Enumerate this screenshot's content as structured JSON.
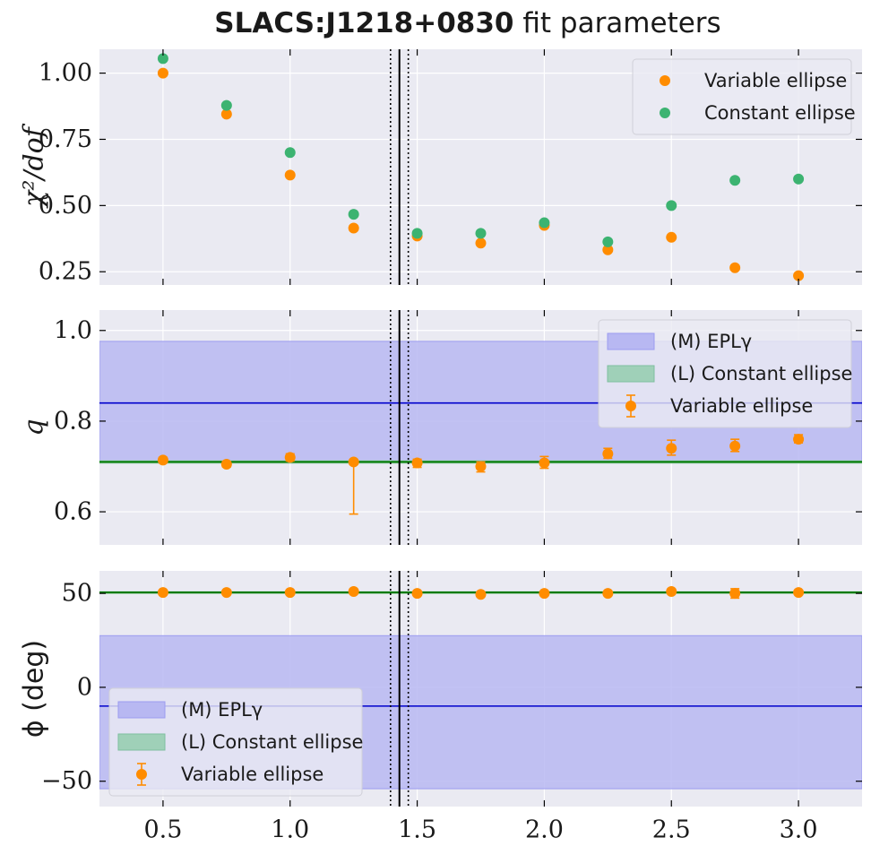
{
  "title": {
    "bold": "SLACS:J1218+0830",
    "rest": " fit parameters"
  },
  "colors": {
    "panel_bg": "#eaeaf2",
    "grid": "#ffffff",
    "variable": "#ff8c00",
    "constant": "#3cb371",
    "model_line": "#0000cc",
    "model_band": "#b8b8f2",
    "model_band_edge": "#9c9cf0",
    "light_line": "#007a00",
    "light_band": "#9fd0b8",
    "vline": "#000000"
  },
  "chart_data": [
    {
      "type": "scatter",
      "id": "chi2",
      "ylabel": "χ²/dof",
      "xlim": [
        0.25,
        3.25
      ],
      "ylim": [
        0.2,
        1.09
      ],
      "yticks": [
        0.25,
        0.5,
        0.75,
        1.0
      ],
      "ytick_labels": [
        "0.25",
        "0.50",
        "0.75",
        "1.00"
      ],
      "grid": true,
      "legend_position": "upper right",
      "x": [
        0.5,
        0.75,
        1.0,
        1.25,
        1.5,
        1.75,
        2.0,
        2.25,
        2.5,
        2.75,
        3.0
      ],
      "series": [
        {
          "name": "Variable ellipse",
          "color_key": "variable",
          "values": [
            1.0,
            0.845,
            0.615,
            0.415,
            0.385,
            0.358,
            0.425,
            0.333,
            0.38,
            0.265,
            0.235
          ]
        },
        {
          "name": "Constant ellipse",
          "color_key": "constant",
          "values": [
            1.055,
            0.878,
            0.7,
            0.467,
            0.395,
            0.395,
            0.435,
            0.363,
            0.5,
            0.595,
            0.6
          ]
        }
      ]
    },
    {
      "type": "scatter",
      "id": "q",
      "ylabel": "q",
      "xlim": [
        0.25,
        3.25
      ],
      "ylim": [
        0.527,
        1.045
      ],
      "yticks": [
        0.6,
        0.8,
        1.0
      ],
      "ytick_labels": [
        "0.6",
        "0.8",
        "1.0"
      ],
      "grid": true,
      "legend_position": "upper right",
      "bands": [
        {
          "name": "(M) EPLγ",
          "color_key": "model_band",
          "line_color_key": "model_line",
          "center": 0.84,
          "low": 0.71,
          "high": 0.976
        }
      ],
      "hlines": [
        {
          "name": "(L) Constant ellipse",
          "color_key": "light_line",
          "value": 0.71,
          "low": 0.706,
          "high": 0.714
        }
      ],
      "x": [
        0.5,
        0.75,
        1.0,
        1.25,
        1.5,
        1.75,
        2.0,
        2.25,
        2.5,
        2.75,
        3.0
      ],
      "series": [
        {
          "name": "Variable ellipse",
          "color_key": "variable",
          "values": [
            0.714,
            0.705,
            0.72,
            0.71,
            0.708,
            0.7,
            0.708,
            0.728,
            0.74,
            0.745,
            0.76
          ],
          "err_low": [
            0.006,
            0.006,
            0.008,
            0.115,
            0.01,
            0.012,
            0.012,
            0.01,
            0.015,
            0.012,
            0.008
          ],
          "err_high": [
            0.006,
            0.006,
            0.008,
            0.004,
            0.008,
            0.01,
            0.014,
            0.012,
            0.018,
            0.015,
            0.01
          ]
        }
      ]
    },
    {
      "type": "scatter",
      "id": "phi",
      "ylabel": "ϕ (deg)",
      "xlabel": "",
      "xlim": [
        0.25,
        3.25
      ],
      "ylim": [
        -63.5,
        62
      ],
      "yticks": [
        -50,
        0,
        50
      ],
      "ytick_labels": [
        "−50",
        "0",
        "50"
      ],
      "xticks": [
        0.5,
        1.0,
        1.5,
        2.0,
        2.5,
        3.0
      ],
      "xtick_labels": [
        "0.5",
        "1.0",
        "1.5",
        "2.0",
        "2.5",
        "3.0"
      ],
      "grid": true,
      "legend_position": "lower left",
      "bands": [
        {
          "name": "(M) EPLγ",
          "color_key": "model_band",
          "line_color_key": "model_line",
          "center": -10,
          "low": -54,
          "high": 27.5
        }
      ],
      "hlines": [
        {
          "name": "(L) Constant ellipse",
          "color_key": "light_line",
          "value": 50.5,
          "low": 49.8,
          "high": 51.2
        }
      ],
      "x": [
        0.5,
        0.75,
        1.0,
        1.25,
        1.5,
        1.75,
        2.0,
        2.25,
        2.5,
        2.75,
        3.0
      ],
      "series": [
        {
          "name": "Variable ellipse",
          "color_key": "variable",
          "values": [
            50.5,
            50.5,
            50.5,
            51.0,
            50.0,
            49.5,
            50.0,
            50.0,
            51.0,
            50.0,
            50.5
          ],
          "err_low": [
            1.0,
            1.0,
            1.0,
            1.0,
            1.0,
            1.0,
            1.0,
            1.0,
            1.0,
            2.5,
            1.0
          ],
          "err_high": [
            1.0,
            1.0,
            1.0,
            1.0,
            1.0,
            1.0,
            1.0,
            1.0,
            1.0,
            2.5,
            1.0
          ]
        }
      ]
    }
  ],
  "vertical_lines": {
    "solid": 1.43,
    "dotted": [
      1.395,
      1.465
    ]
  }
}
